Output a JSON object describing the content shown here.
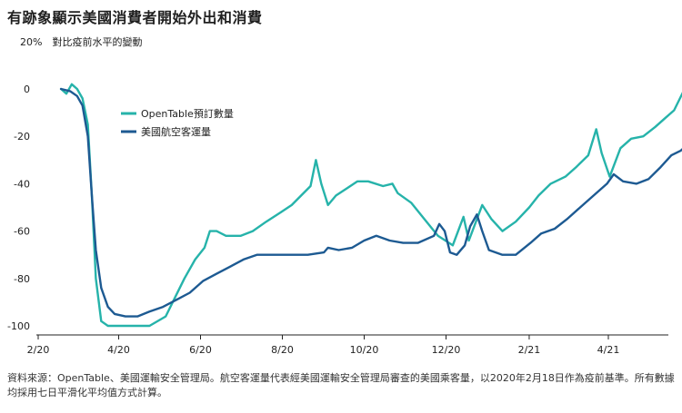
{
  "title": "有跡象顯示美國消費者開始外出和消費",
  "ylabel": "20%　對比疫前水平的變動",
  "source": "資料來源：OpenTable、美國運輸安全管理局。航空客運量代表經美國運輸安全管理局審查的美國乘客量，以2020年2月18日作為疫前基準。所有數據均採用七日平滑化平均值方式計算。",
  "colors": {
    "opentable": "#26b3aa",
    "tsa": "#1d5a92",
    "axis": "#222222"
  },
  "chart_data": {
    "type": "line",
    "title": "有跡象顯示美國消費者開始外出和消費",
    "ylabel": "20%　對比疫前水平的變動",
    "xlabel": "",
    "xlim": [
      "2020-02-18",
      "2021-06-01"
    ],
    "ylim": [
      -100,
      0
    ],
    "y_ticks": [
      0,
      -20,
      -40,
      -60,
      -80,
      -100
    ],
    "x_ticks": [
      {
        "label": "2/20",
        "date": "2020-02-01"
      },
      {
        "label": "4/20",
        "date": "2020-04-01"
      },
      {
        "label": "6/20",
        "date": "2020-06-01"
      },
      {
        "label": "8/20",
        "date": "2020-08-01"
      },
      {
        "label": "10/20",
        "date": "2020-10-01"
      },
      {
        "label": "12/20",
        "date": "2020-12-01"
      },
      {
        "label": "2/21",
        "date": "2021-02-01"
      },
      {
        "label": "4/21",
        "date": "2021-04-01"
      }
    ],
    "grid": false,
    "legend": "top-left",
    "series": [
      {
        "name": "OpenTable預訂數量",
        "color": "#26b3aa",
        "points": [
          [
            "2020-02-18",
            0
          ],
          [
            "2020-02-22",
            -2
          ],
          [
            "2020-02-26",
            2
          ],
          [
            "2020-03-01",
            0
          ],
          [
            "2020-03-05",
            -4
          ],
          [
            "2020-03-09",
            -15
          ],
          [
            "2020-03-12",
            -45
          ],
          [
            "2020-03-15",
            -80
          ],
          [
            "2020-03-19",
            -98
          ],
          [
            "2020-03-24",
            -100
          ],
          [
            "2020-04-08",
            -100
          ],
          [
            "2020-04-24",
            -100
          ],
          [
            "2020-05-06",
            -96
          ],
          [
            "2020-05-13",
            -88
          ],
          [
            "2020-05-20",
            -80
          ],
          [
            "2020-05-28",
            -72
          ],
          [
            "2020-06-04",
            -67
          ],
          [
            "2020-06-08",
            -60
          ],
          [
            "2020-06-13",
            -60
          ],
          [
            "2020-06-20",
            -62
          ],
          [
            "2020-07-01",
            -62
          ],
          [
            "2020-07-10",
            -60
          ],
          [
            "2020-07-20",
            -56
          ],
          [
            "2020-07-31",
            -52
          ],
          [
            "2020-08-08",
            -49
          ],
          [
            "2020-08-15",
            -45
          ],
          [
            "2020-08-22",
            -41
          ],
          [
            "2020-08-26",
            -30
          ],
          [
            "2020-08-30",
            -40
          ],
          [
            "2020-09-04",
            -49
          ],
          [
            "2020-09-10",
            -45
          ],
          [
            "2020-09-18",
            -42
          ],
          [
            "2020-09-26",
            -39
          ],
          [
            "2020-10-04",
            -39
          ],
          [
            "2020-10-15",
            -41
          ],
          [
            "2020-10-22",
            -40
          ],
          [
            "2020-10-26",
            -44
          ],
          [
            "2020-11-05",
            -48
          ],
          [
            "2020-11-15",
            -55
          ],
          [
            "2020-11-25",
            -62
          ],
          [
            "2020-12-06",
            -66
          ],
          [
            "2020-12-10",
            -60
          ],
          [
            "2020-12-14",
            -54
          ],
          [
            "2020-12-18",
            -64
          ],
          [
            "2020-12-24",
            -55
          ],
          [
            "2020-12-28",
            -49
          ],
          [
            "2021-01-04",
            -55
          ],
          [
            "2021-01-12",
            -60
          ],
          [
            "2021-01-22",
            -56
          ],
          [
            "2021-02-01",
            -50
          ],
          [
            "2021-02-08",
            -45
          ],
          [
            "2021-02-17",
            -40
          ],
          [
            "2021-02-28",
            -37
          ],
          [
            "2021-03-08",
            -33
          ],
          [
            "2021-03-17",
            -28
          ],
          [
            "2021-03-23",
            -17
          ],
          [
            "2021-03-27",
            -27
          ],
          [
            "2021-04-02",
            -37
          ],
          [
            "2021-04-10",
            -25
          ],
          [
            "2021-04-18",
            -21
          ],
          [
            "2021-04-27",
            -20
          ],
          [
            "2021-05-06",
            -16
          ],
          [
            "2021-05-14",
            -12
          ],
          [
            "2021-05-20",
            -9
          ],
          [
            "2021-05-27",
            -1
          ]
        ]
      },
      {
        "name": "美國航空客運量",
        "color": "#1d5a92",
        "points": [
          [
            "2020-02-18",
            0
          ],
          [
            "2020-02-25",
            -1
          ],
          [
            "2020-03-01",
            -3
          ],
          [
            "2020-03-05",
            -7
          ],
          [
            "2020-03-09",
            -20
          ],
          [
            "2020-03-12",
            -45
          ],
          [
            "2020-03-15",
            -68
          ],
          [
            "2020-03-19",
            -84
          ],
          [
            "2020-03-24",
            -92
          ],
          [
            "2020-03-29",
            -95
          ],
          [
            "2020-04-06",
            -96
          ],
          [
            "2020-04-15",
            -96
          ],
          [
            "2020-04-24",
            -94
          ],
          [
            "2020-05-04",
            -92
          ],
          [
            "2020-05-14",
            -89
          ],
          [
            "2020-05-24",
            -86
          ],
          [
            "2020-06-03",
            -81
          ],
          [
            "2020-06-13",
            -78
          ],
          [
            "2020-06-23",
            -75
          ],
          [
            "2020-07-03",
            -72
          ],
          [
            "2020-07-13",
            -70
          ],
          [
            "2020-07-25",
            -70
          ],
          [
            "2020-08-06",
            -70
          ],
          [
            "2020-08-20",
            -70
          ],
          [
            "2020-09-01",
            -69
          ],
          [
            "2020-09-04",
            -67
          ],
          [
            "2020-09-12",
            -68
          ],
          [
            "2020-09-22",
            -67
          ],
          [
            "2020-10-01",
            -64
          ],
          [
            "2020-10-10",
            -62
          ],
          [
            "2020-10-20",
            -64
          ],
          [
            "2020-10-30",
            -65
          ],
          [
            "2020-11-10",
            -65
          ],
          [
            "2020-11-22",
            -62
          ],
          [
            "2020-11-26",
            -57
          ],
          [
            "2020-11-30",
            -60
          ],
          [
            "2020-12-04",
            -69
          ],
          [
            "2020-12-09",
            -70
          ],
          [
            "2020-12-15",
            -66
          ],
          [
            "2020-12-19",
            -58
          ],
          [
            "2020-12-24",
            -53
          ],
          [
            "2020-12-28",
            -60
          ],
          [
            "2021-01-02",
            -68
          ],
          [
            "2021-01-12",
            -70
          ],
          [
            "2021-01-22",
            -70
          ],
          [
            "2021-02-02",
            -65
          ],
          [
            "2021-02-10",
            -61
          ],
          [
            "2021-02-20",
            -59
          ],
          [
            "2021-03-01",
            -55
          ],
          [
            "2021-03-11",
            -50
          ],
          [
            "2021-03-21",
            -45
          ],
          [
            "2021-03-31",
            -40
          ],
          [
            "2021-04-05",
            -36
          ],
          [
            "2021-04-12",
            -39
          ],
          [
            "2021-04-22",
            -40
          ],
          [
            "2021-05-01",
            -38
          ],
          [
            "2021-05-10",
            -33
          ],
          [
            "2021-05-18",
            -28
          ],
          [
            "2021-05-25",
            -26
          ],
          [
            "2021-05-29",
            -24
          ],
          [
            "2021-06-01",
            -25
          ]
        ]
      }
    ]
  }
}
